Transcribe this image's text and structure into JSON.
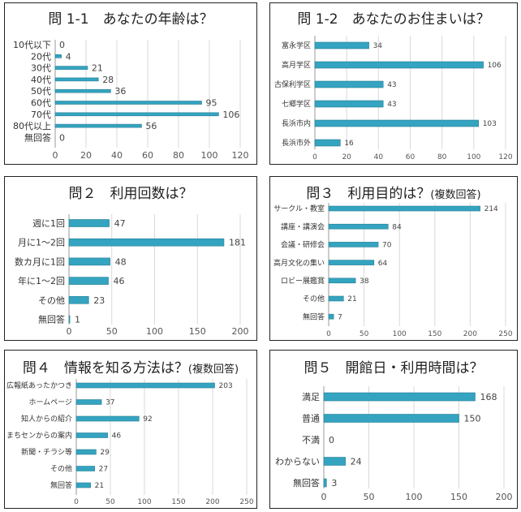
{
  "colors": {
    "bar_fill": "#34A4C0",
    "bar_stroke": "#2A7F94",
    "grid": "#d9d9d9",
    "axis": "#999999"
  },
  "chart_data": [
    {
      "id": "q1-1",
      "type": "bar",
      "orientation": "horizontal",
      "title": "問 1-1　あなたの年齢は？",
      "categories": [
        "10代以下",
        "20代",
        "30代",
        "40代",
        "50代",
        "60代",
        "70代",
        "80代以上",
        "無回答"
      ],
      "values": [
        0,
        4,
        21,
        28,
        36,
        95,
        106,
        56,
        0
      ],
      "xlim": [
        0,
        120
      ],
      "ticks": [
        0,
        20,
        40,
        60,
        80,
        100,
        120
      ],
      "grid": true
    },
    {
      "id": "q1-2",
      "type": "bar",
      "orientation": "horizontal",
      "title": "問 1-2　あなたのお住まいは？",
      "categories": [
        "富永学区",
        "高月学区",
        "古保利学区",
        "七郷学区",
        "長浜市内",
        "長浜市外"
      ],
      "values": [
        34,
        106,
        43,
        43,
        103,
        16
      ],
      "xlim": [
        0,
        120
      ],
      "ticks": [
        0,
        20,
        40,
        60,
        80,
        100,
        120
      ],
      "grid": true
    },
    {
      "id": "q2",
      "type": "bar",
      "orientation": "horizontal",
      "title": "問２　利用回数は？",
      "categories": [
        "週に1回",
        "月に1～2回",
        "数カ月に1回",
        "年に1～2回",
        "その他",
        "無回答"
      ],
      "values": [
        47,
        181,
        48,
        46,
        23,
        1
      ],
      "xlim": [
        0,
        200
      ],
      "ticks": [
        0,
        50,
        100,
        150,
        200
      ],
      "grid": true
    },
    {
      "id": "q3",
      "type": "bar",
      "orientation": "horizontal",
      "title": "問３　利用目的は？",
      "subtitle": "(複数回答)",
      "categories": [
        "サークル・教室",
        "講座・講演会",
        "会議・研修会",
        "高月文化の集い",
        "ロビー展鑑賞",
        "その他",
        "無回答"
      ],
      "values": [
        214,
        84,
        70,
        64,
        38,
        21,
        7
      ],
      "xlim": [
        0,
        250
      ],
      "ticks": [
        0,
        50,
        100,
        150,
        200,
        250
      ],
      "grid": true
    },
    {
      "id": "q4",
      "type": "bar",
      "orientation": "horizontal",
      "title": "問４　情報を知る方法は？",
      "subtitle": "(複数回答)",
      "categories": [
        "広報紙あったかつき",
        "ホームページ",
        "知人からの紹介",
        "まちセンからの案内",
        "新聞・チラシ等",
        "その他",
        "無回答"
      ],
      "values": [
        203,
        37,
        92,
        46,
        29,
        27,
        21
      ],
      "xlim": [
        0,
        250
      ],
      "ticks": [
        0,
        50,
        100,
        150,
        200,
        250
      ],
      "grid": true
    },
    {
      "id": "q5",
      "type": "bar",
      "orientation": "horizontal",
      "title": "問５　開館日・利用時間は？",
      "categories": [
        "満足",
        "普通",
        "不満",
        "わからない",
        "無回答"
      ],
      "values": [
        168,
        150,
        0,
        24,
        3
      ],
      "xlim": [
        0,
        200
      ],
      "ticks": [
        0,
        50,
        100,
        150,
        200
      ],
      "grid": true
    }
  ]
}
